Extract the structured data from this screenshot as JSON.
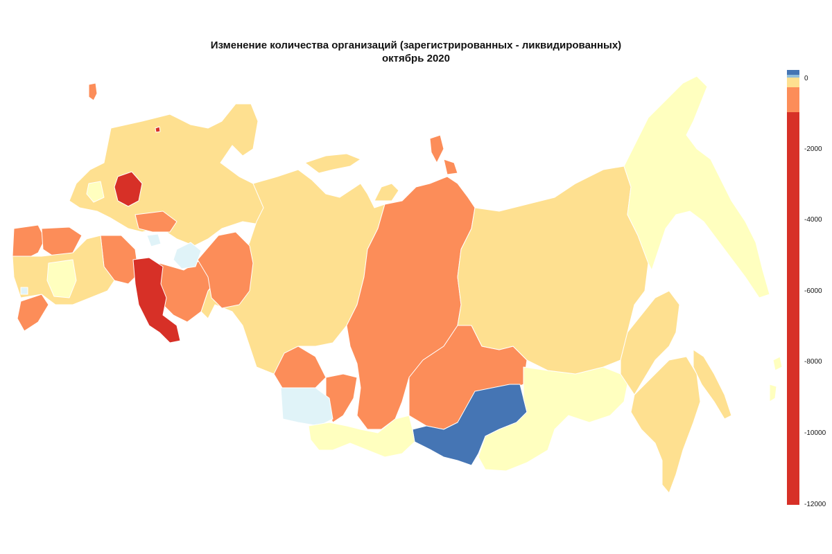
{
  "title_line1": "Изменение количества организаций (зарегистрированных - ликвидированных)",
  "title_line2": "октябрь 2020",
  "colors": {
    "dark_red": "#d73027",
    "orange": "#fc8d59",
    "light_orange": "#fee090",
    "pale_yellow": "#ffffbf",
    "pale_blue": "#e0f3f8",
    "mid_blue": "#91bfdb",
    "dark_blue": "#4575b4"
  },
  "legend": {
    "ticks": [
      "0",
      "-2000",
      "-4000",
      "-6000",
      "-8000",
      "-10000",
      "-12000"
    ]
  },
  "chart_data": {
    "type": "choropleth",
    "region": "Russia",
    "legend_position": "right",
    "scale": {
      "min": -12000,
      "max": 500
    }
  }
}
